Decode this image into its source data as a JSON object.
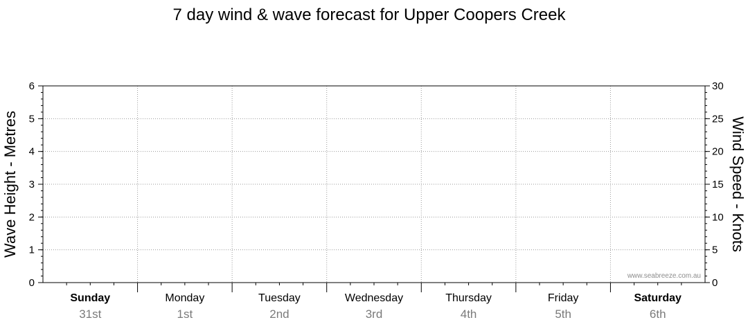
{
  "chart_data": {
    "type": "line",
    "title": "7 day wind & wave forecast for Upper Coopers Creek",
    "ylabel_left": "Wave Height - Metres",
    "ylabel_right": "Wind Speed - Knots",
    "ylim_left": [
      0,
      6
    ],
    "ylim_right": [
      0,
      30
    ],
    "yticks_left": [
      "0",
      "1",
      "2",
      "3",
      "4",
      "5",
      "6"
    ],
    "yticks_right": [
      "0",
      "5",
      "10",
      "15",
      "20",
      "25",
      "30"
    ],
    "days": [
      {
        "name": "Sunday",
        "date": "31st",
        "bold": true
      },
      {
        "name": "Monday",
        "date": "1st",
        "bold": false
      },
      {
        "name": "Tuesday",
        "date": "2nd",
        "bold": false
      },
      {
        "name": "Wednesday",
        "date": "3rd",
        "bold": false
      },
      {
        "name": "Thursday",
        "date": "4th",
        "bold": false
      },
      {
        "name": "Friday",
        "date": "5th",
        "bold": false
      },
      {
        "name": "Saturday",
        "date": "6th",
        "bold": true
      }
    ],
    "series": [],
    "grid": true,
    "watermark": "www.seabreeze.com.au"
  }
}
